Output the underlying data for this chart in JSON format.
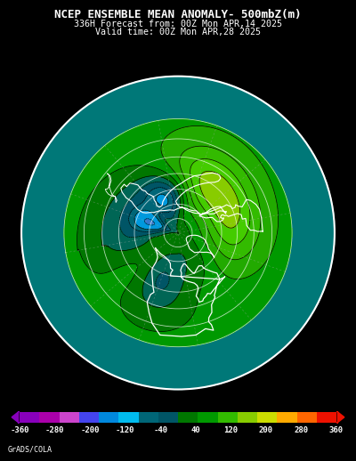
{
  "title_line1": "NCEP ENSEMBLE MEAN ANOMALY- 500mbZ(m)",
  "title_line2": "336H Forecast from: 00Z Mon APR,14 2025",
  "title_line3": "Valid time: 00Z Mon APR,28 2025",
  "watermark": "GrADS/COLA",
  "colorbar_labels": [
    "-360",
    "-280",
    "-200",
    "-120",
    "-40",
    "40",
    "120",
    "200",
    "280",
    "360"
  ],
  "bg_color": "#000000",
  "ocean_color": "#007878",
  "title_color": "#ffffff",
  "map_border_color": "#aaaaaa",
  "lat_line_color": "#cccccc",
  "lon_line_color": "#888888",
  "contour_line_color": "#000000",
  "land_outline_color": "#ffffff",
  "colorbar_colors": [
    "#9900bb",
    "#aa00aa",
    "#cc55cc",
    "#4444ee",
    "#0088ee",
    "#00bbee",
    "#005577",
    "#006655",
    "#007700",
    "#009900",
    "#33bb00",
    "#aacc00",
    "#dddd00",
    "#ffaa00",
    "#ff6600",
    "#ee1100"
  ],
  "anomaly_levels": [
    -360,
    -280,
    -200,
    -120,
    -80,
    -40,
    0,
    40,
    80,
    120,
    160,
    200,
    280,
    360
  ],
  "anomaly_fill_colors": [
    "#4444ee",
    "#0088ee",
    "#00bbee",
    "#006677",
    "#005566",
    "#006655",
    "#007700",
    "#009900",
    "#22aa00",
    "#33bb00",
    "#44cc00",
    "#aacc00",
    "#dddd00"
  ]
}
